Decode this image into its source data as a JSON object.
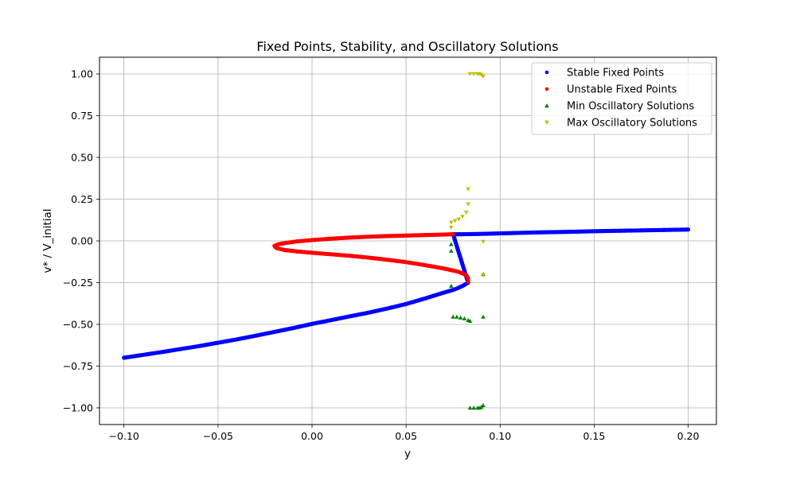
{
  "chart_data": {
    "type": "scatter",
    "title": "Fixed Points, Stability, and Oscillatory Solutions",
    "xlabel": "y",
    "ylabel": "v* / V_initial",
    "xlim": [
      -0.113,
      0.215
    ],
    "ylim": [
      -1.1,
      1.1
    ],
    "xticks": [
      -0.1,
      -0.05,
      0.0,
      0.05,
      0.1,
      0.15,
      0.2
    ],
    "xtick_labels": [
      "−0.10",
      "−0.05",
      "0.00",
      "0.05",
      "0.10",
      "0.15",
      "0.20"
    ],
    "yticks": [
      -1.0,
      -0.75,
      -0.5,
      -0.25,
      0.0,
      0.25,
      0.5,
      0.75,
      1.0
    ],
    "ytick_labels": [
      "−1.00",
      "−0.75",
      "−0.50",
      "−0.25",
      "0.00",
      "0.25",
      "0.50",
      "0.75",
      "1.00"
    ],
    "grid": true,
    "legend_position": "top-right",
    "series": [
      {
        "name": "Stable Fixed Points",
        "color": "#0000ff",
        "marker": "circle",
        "points": [
          [
            -0.1,
            -0.7
          ],
          [
            -0.09,
            -0.683
          ],
          [
            -0.08,
            -0.666
          ],
          [
            -0.07,
            -0.648
          ],
          [
            -0.06,
            -0.63
          ],
          [
            -0.05,
            -0.61
          ],
          [
            -0.04,
            -0.59
          ],
          [
            -0.03,
            -0.568
          ],
          [
            -0.02,
            -0.545
          ],
          [
            -0.01,
            -0.522
          ],
          [
            0.0,
            -0.497
          ],
          [
            0.01,
            -0.475
          ],
          [
            0.02,
            -0.452
          ],
          [
            0.03,
            -0.43
          ],
          [
            0.04,
            -0.405
          ],
          [
            0.05,
            -0.378
          ],
          [
            0.06,
            -0.345
          ],
          [
            0.07,
            -0.31
          ],
          [
            0.076,
            -0.29
          ],
          [
            0.08,
            -0.27
          ],
          [
            0.083,
            -0.25
          ],
          [
            0.075,
            0.04
          ],
          [
            0.08,
            0.04
          ],
          [
            0.09,
            0.042
          ],
          [
            0.1,
            0.045
          ],
          [
            0.11,
            0.048
          ],
          [
            0.12,
            0.051
          ],
          [
            0.13,
            0.053
          ],
          [
            0.14,
            0.055
          ],
          [
            0.15,
            0.058
          ],
          [
            0.16,
            0.06
          ],
          [
            0.17,
            0.062
          ],
          [
            0.18,
            0.064
          ],
          [
            0.19,
            0.066
          ],
          [
            0.2,
            0.068
          ]
        ]
      },
      {
        "name": "Unstable Fixed Points",
        "color": "#ff0000",
        "marker": "circle",
        "points": [
          [
            0.075,
            0.04
          ],
          [
            0.07,
            0.038
          ],
          [
            0.06,
            0.035
          ],
          [
            0.05,
            0.032
          ],
          [
            0.04,
            0.029
          ],
          [
            0.03,
            0.025
          ],
          [
            0.02,
            0.02
          ],
          [
            0.01,
            0.013
          ],
          [
            0.0,
            0.005
          ],
          [
            -0.008,
            -0.003
          ],
          [
            -0.014,
            -0.012
          ],
          [
            -0.018,
            -0.02
          ],
          [
            -0.02,
            -0.03
          ],
          [
            -0.019,
            -0.042
          ],
          [
            -0.015,
            -0.054
          ],
          [
            -0.008,
            -0.063
          ],
          [
            0.0,
            -0.071
          ],
          [
            0.01,
            -0.08
          ],
          [
            0.02,
            -0.089
          ],
          [
            0.03,
            -0.1
          ],
          [
            0.04,
            -0.113
          ],
          [
            0.05,
            -0.127
          ],
          [
            0.06,
            -0.145
          ],
          [
            0.07,
            -0.165
          ],
          [
            0.078,
            -0.185
          ],
          [
            0.082,
            -0.205
          ],
          [
            0.083,
            -0.225
          ],
          [
            0.083,
            -0.245
          ]
        ]
      },
      {
        "name": "Min Oscillatory Solutions",
        "color": "#008000",
        "marker": "triangle-up",
        "points": [
          [
            0.074,
            -0.02
          ],
          [
            0.074,
            -0.06
          ],
          [
            0.074,
            -0.27
          ],
          [
            0.075,
            -0.455
          ],
          [
            0.077,
            -0.455
          ],
          [
            0.079,
            -0.46
          ],
          [
            0.081,
            -0.465
          ],
          [
            0.083,
            -0.475
          ],
          [
            0.084,
            -0.48
          ],
          [
            0.091,
            -0.455
          ],
          [
            0.091,
            -0.2
          ],
          [
            0.084,
            -1.0
          ],
          [
            0.086,
            -1.0
          ],
          [
            0.088,
            -1.0
          ],
          [
            0.089,
            -1.0
          ],
          [
            0.09,
            -0.995
          ],
          [
            0.091,
            -0.985
          ]
        ]
      },
      {
        "name": "Max Oscillatory Solutions",
        "color": "#bfbf00",
        "marker": "triangle-down",
        "points": [
          [
            0.074,
            0.08
          ],
          [
            0.074,
            0.11
          ],
          [
            0.076,
            0.12
          ],
          [
            0.078,
            0.13
          ],
          [
            0.08,
            0.145
          ],
          [
            0.082,
            0.17
          ],
          [
            0.083,
            0.22
          ],
          [
            0.083,
            0.31
          ],
          [
            0.091,
            -0.005
          ],
          [
            0.091,
            -0.205
          ],
          [
            0.084,
            1.0
          ],
          [
            0.086,
            1.0
          ],
          [
            0.088,
            1.0
          ],
          [
            0.089,
            1.0
          ],
          [
            0.09,
            0.995
          ],
          [
            0.091,
            0.985
          ]
        ]
      }
    ]
  }
}
